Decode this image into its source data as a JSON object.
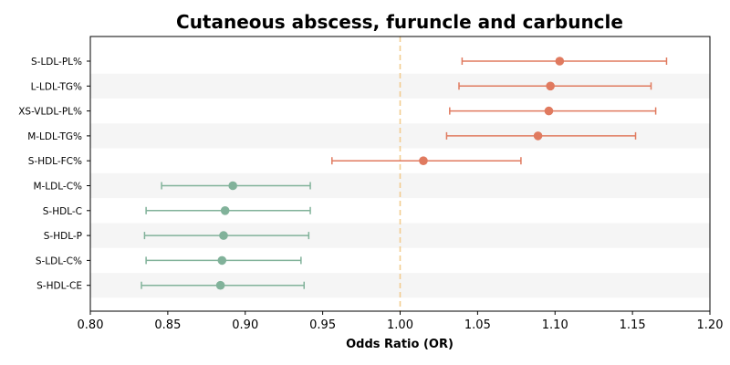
{
  "chart_data": {
    "type": "forest",
    "title": "Cutaneous abscess, furuncle and carbuncle",
    "xlabel": "Odds Ratio (OR)",
    "xlim": [
      0.8,
      1.2
    ],
    "xticks": [
      "0.80",
      "0.85",
      "0.90",
      "0.95",
      "1.00",
      "1.05",
      "1.10",
      "1.15",
      "1.20"
    ],
    "xtick_values": [
      0.8,
      0.85,
      0.9,
      0.95,
      1.0,
      1.05,
      1.1,
      1.15,
      1.2
    ],
    "reference_line": 1.0,
    "grid": false,
    "colors": {
      "above_one": "#E07A5F",
      "below_one": "#81B29A",
      "reference": "#F2CC8F",
      "band": "#F5F5F5"
    },
    "rows": [
      {
        "label": "S-LDL-PL%",
        "or": 1.103,
        "lower": 1.04,
        "upper": 1.172
      },
      {
        "label": "L-LDL-TG%",
        "or": 1.097,
        "lower": 1.038,
        "upper": 1.162
      },
      {
        "label": "XS-VLDL-PL%",
        "or": 1.096,
        "lower": 1.032,
        "upper": 1.165
      },
      {
        "label": "M-LDL-TG%",
        "or": 1.089,
        "lower": 1.03,
        "upper": 1.152
      },
      {
        "label": "S-HDL-FC%",
        "or": 1.015,
        "lower": 0.956,
        "upper": 1.078
      },
      {
        "label": "M-LDL-C%",
        "or": 0.892,
        "lower": 0.846,
        "upper": 0.942
      },
      {
        "label": "S-HDL-C",
        "or": 0.887,
        "lower": 0.836,
        "upper": 0.942
      },
      {
        "label": "S-HDL-P",
        "or": 0.886,
        "lower": 0.835,
        "upper": 0.941
      },
      {
        "label": "S-LDL-C%",
        "or": 0.885,
        "lower": 0.836,
        "upper": 0.936
      },
      {
        "label": "S-HDL-CE",
        "or": 0.884,
        "lower": 0.833,
        "upper": 0.938
      }
    ]
  }
}
